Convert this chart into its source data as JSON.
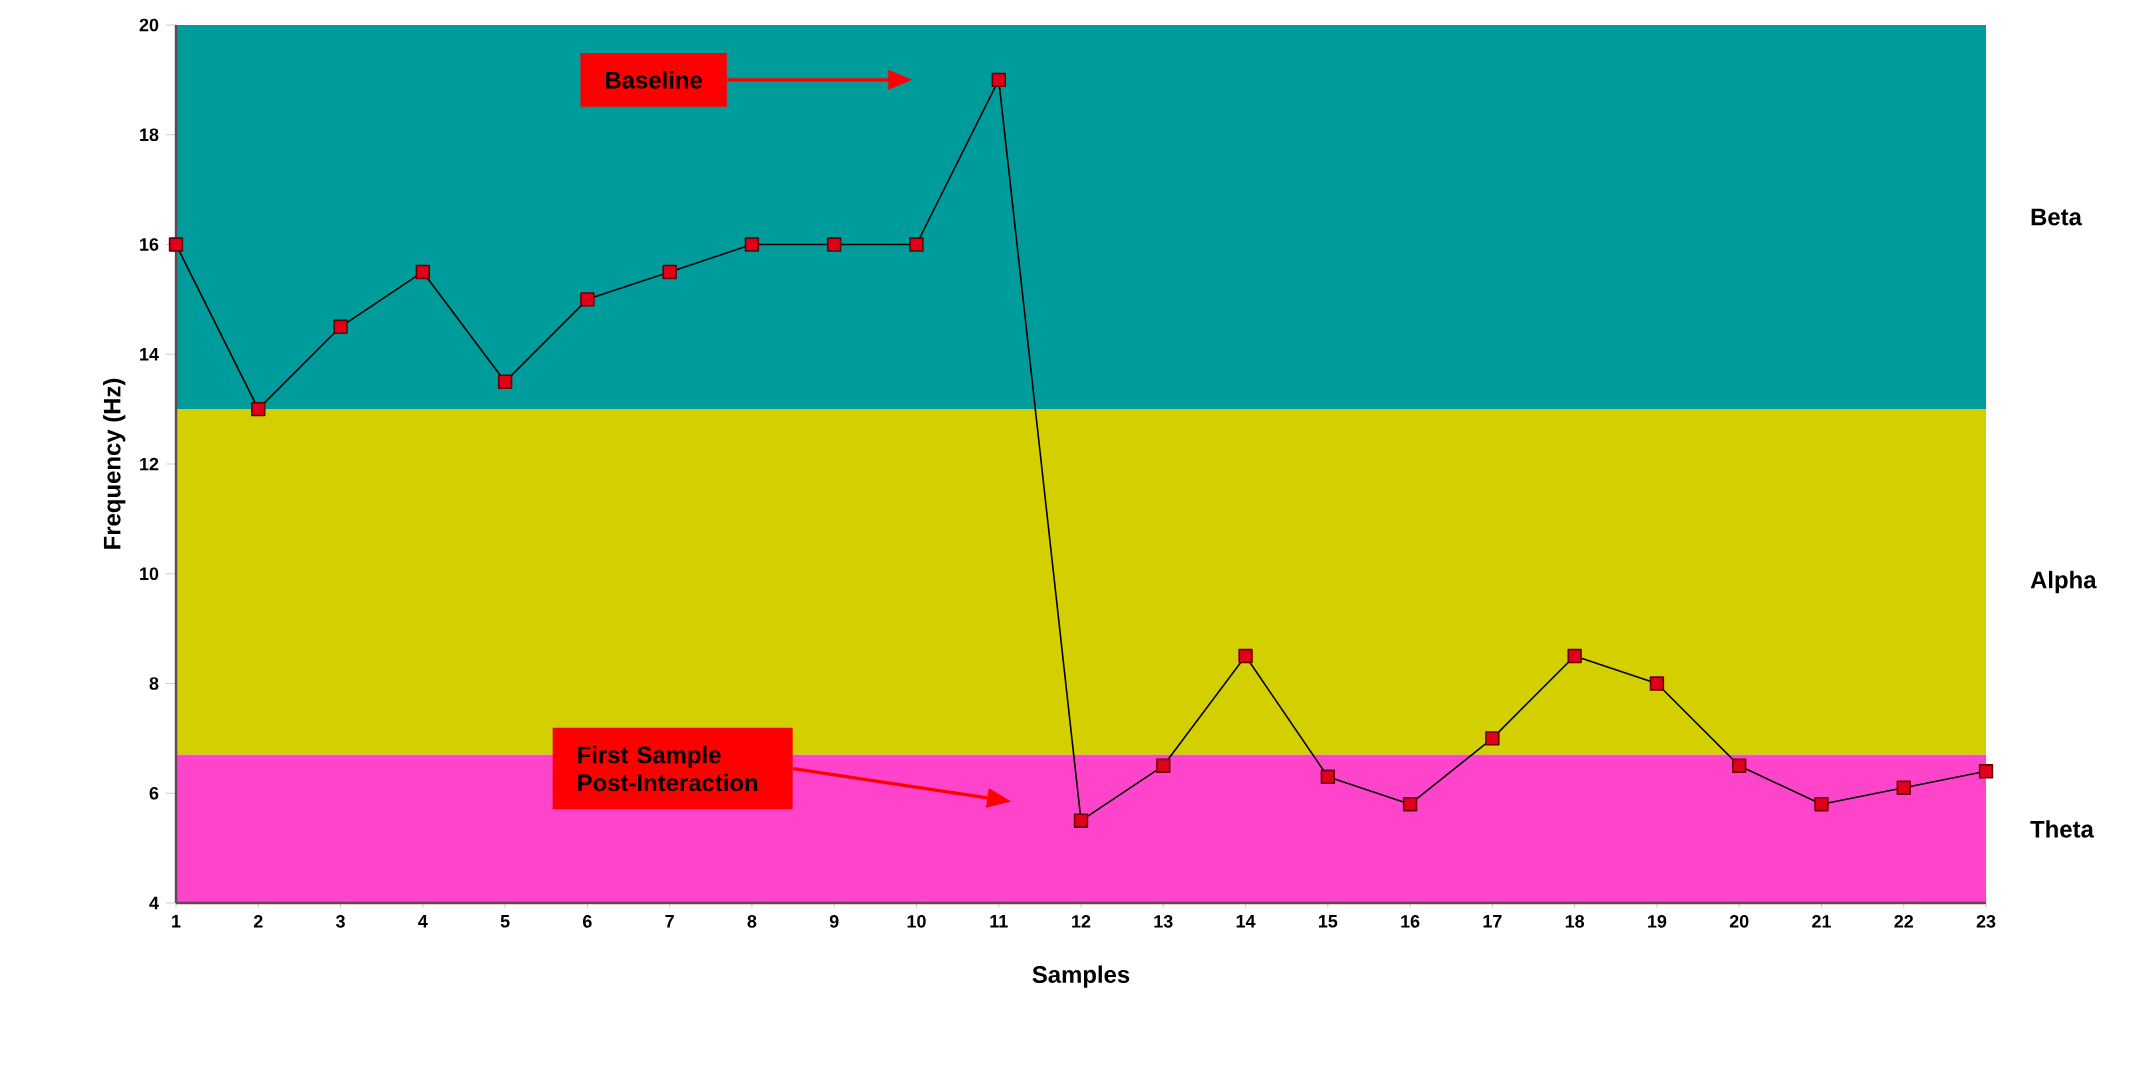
{
  "chart_data": {
    "type": "line",
    "xlabel": "Samples",
    "ylabel": "Frequency (Hz)",
    "categories": [
      "1",
      "2",
      "3",
      "4",
      "5",
      "6",
      "7",
      "8",
      "9",
      "10",
      "11",
      "12",
      "13",
      "14",
      "15",
      "16",
      "17",
      "18",
      "19",
      "20",
      "21",
      "22",
      "23"
    ],
    "series": [
      {
        "color": "#e0001c",
        "values": [
          16,
          13,
          14.5,
          15.5,
          13.5,
          15,
          15.5,
          16,
          16,
          16,
          19,
          5.5,
          6.5,
          8.5,
          6.3,
          5.8,
          7,
          8.5,
          8,
          6.5,
          5.8,
          6.1,
          6.4
        ]
      }
    ],
    "ylim": [
      4,
      20
    ],
    "yticks": [
      4,
      6,
      8,
      10,
      12,
      14,
      16,
      18,
      20
    ],
    "bands": [
      {
        "axis": "y",
        "from": 13,
        "to": 20,
        "label": "Beta",
        "color": "#009b9b"
      },
      {
        "axis": "y",
        "from": 6.7,
        "to": 13,
        "label": "Alpha",
        "color": "#d4cf00"
      },
      {
        "axis": "y",
        "from": 4,
        "to": 6.7,
        "label": "Theta",
        "color": "#ff44cc"
      }
    ],
    "annotations": [
      "Baseline",
      "First Sample Post-Interaction"
    ],
    "marker": "square",
    "line_style": "solid",
    "grid": false
  }
}
